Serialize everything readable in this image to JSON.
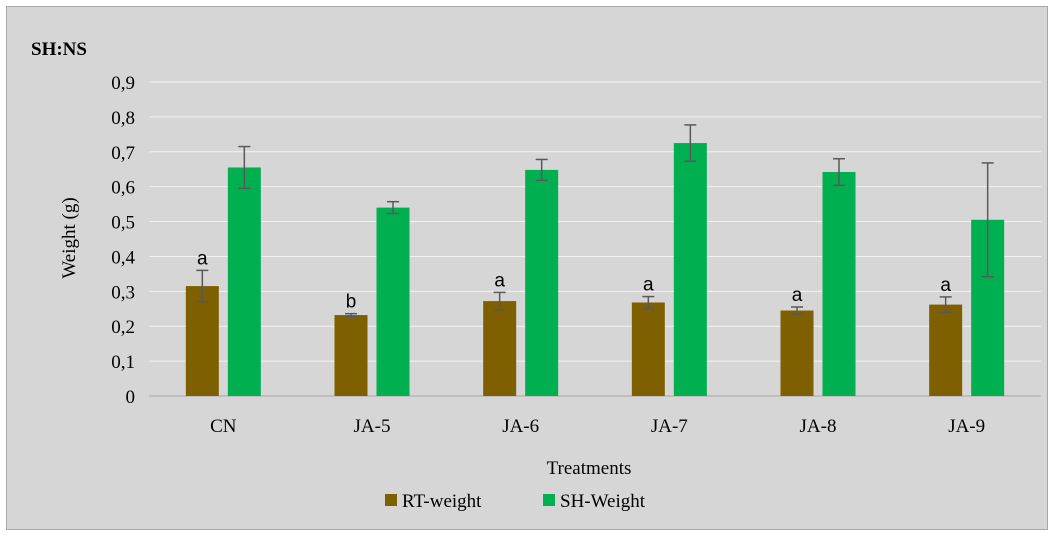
{
  "chart_data": {
    "type": "bar",
    "title": "SH:NS",
    "xlabel": "Treatments",
    "ylabel": "Weight (g)",
    "ylim": [
      0,
      0.9
    ],
    "ytick_step": 0.1,
    "ytick_labels": [
      "0",
      "0,1",
      "0,2",
      "0,3",
      "0,4",
      "0,5",
      "0,6",
      "0,7",
      "0,8",
      "0,9"
    ],
    "grid": true,
    "legend_position": "bottom",
    "categories": [
      "CN",
      "JA-5",
      "JA-6",
      "JA-7",
      "JA-8",
      "JA-9"
    ],
    "series": [
      {
        "name": "RT-weight",
        "color": "#7f6000",
        "values": [
          0.315,
          0.232,
          0.272,
          0.268,
          0.245,
          0.262
        ],
        "errors": [
          0.045,
          0.004,
          0.025,
          0.017,
          0.01,
          0.022
        ],
        "letters": [
          "a",
          "b",
          "a",
          "a",
          "a",
          "a"
        ]
      },
      {
        "name": "SH-Weight",
        "color": "#00b050",
        "values": [
          0.655,
          0.54,
          0.648,
          0.725,
          0.642,
          0.505
        ],
        "errors": [
          0.06,
          0.017,
          0.03,
          0.052,
          0.038,
          0.163
        ]
      }
    ]
  }
}
